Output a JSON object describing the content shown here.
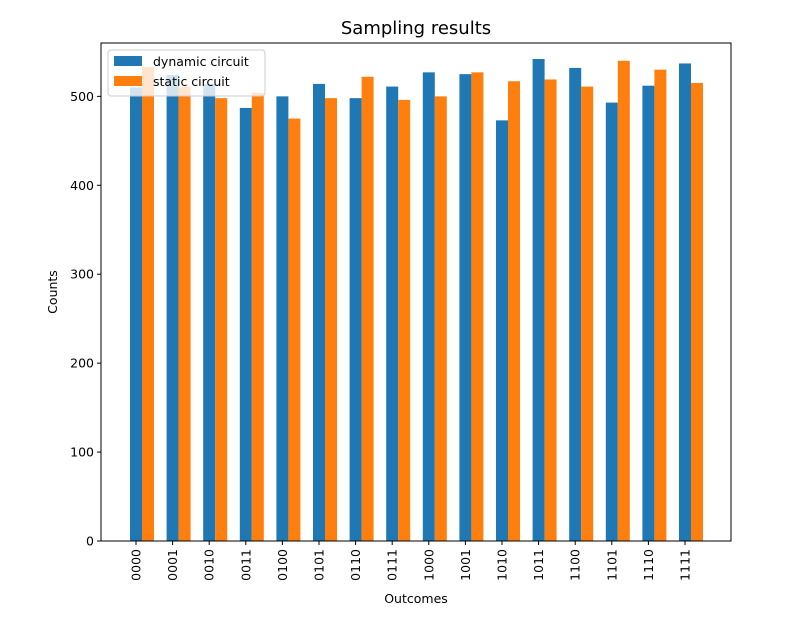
{
  "chart_data": {
    "type": "bar",
    "title": "Sampling results",
    "xlabel": "Outcomes",
    "ylabel": "Counts",
    "ylim": [
      0,
      560
    ],
    "yticks": [
      0,
      100,
      200,
      300,
      400,
      500
    ],
    "categories": [
      "0000",
      "0001",
      "0010",
      "0011",
      "0100",
      "0101",
      "0110",
      "0111",
      "1000",
      "1001",
      "1010",
      "1011",
      "1100",
      "1101",
      "1110",
      "1111"
    ],
    "series": [
      {
        "name": "dynamic circuit",
        "color": "#1f77b4",
        "values": [
          510,
          524,
          514,
          487,
          500,
          514,
          498,
          511,
          527,
          525,
          473,
          542,
          532,
          493,
          512,
          537
        ]
      },
      {
        "name": "static circuit",
        "color": "#ff7f0e",
        "values": [
          533,
          511,
          498,
          504,
          475,
          498,
          522,
          496,
          500,
          527,
          517,
          519,
          511,
          540,
          530,
          515
        ]
      }
    ],
    "grid": false,
    "legend_position": "top-left"
  }
}
